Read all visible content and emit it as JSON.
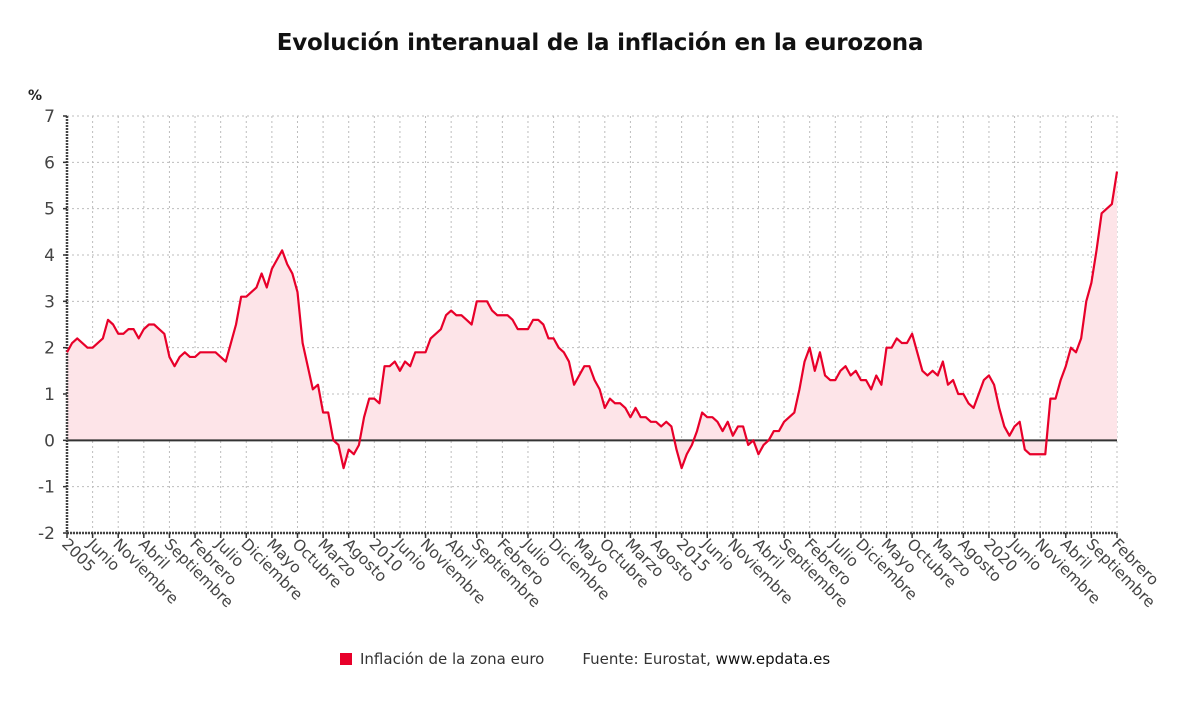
{
  "chart_data": {
    "type": "area",
    "title": "Evolución interanual de la inflación en la eurozona",
    "ylabel": "%",
    "xlabel": "",
    "ylim": [
      -2,
      7
    ],
    "yticks": [
      -2,
      -1,
      0,
      1,
      2,
      3,
      4,
      5,
      6,
      7
    ],
    "grid": true,
    "start": "2005-01",
    "end": "2022-02",
    "tick_every_months": 5,
    "xtick_labels": [
      "2005",
      "Junio",
      "Noviembre",
      "Abril",
      "Septiembre",
      "Febrero",
      "Julio",
      "Diciembre",
      "Mayo",
      "Octubre",
      "Marzo",
      "Agosto",
      "2010",
      "Junio",
      "Noviembre",
      "Abril",
      "Septiembre",
      "Febrero",
      "Julio",
      "Diciembre",
      "Mayo",
      "Octubre",
      "Marzo",
      "Agosto",
      "2015",
      "Junio",
      "Noviembre",
      "Abril",
      "Septiembre",
      "Febrero",
      "Julio",
      "Diciembre",
      "Mayo",
      "Octubre",
      "Marzo",
      "Agosto",
      "2020",
      "Junio",
      "Noviembre",
      "Abril",
      "Septiembre",
      "Febrero"
    ],
    "series": [
      {
        "name": "Inflación de la zona euro",
        "color": "#e8002a",
        "fill": "#fde4e8",
        "values": [
          1.9,
          2.1,
          2.2,
          2.1,
          2.0,
          2.0,
          2.1,
          2.2,
          2.6,
          2.5,
          2.3,
          2.3,
          2.4,
          2.4,
          2.2,
          2.4,
          2.5,
          2.5,
          2.4,
          2.3,
          1.8,
          1.6,
          1.8,
          1.9,
          1.8,
          1.8,
          1.9,
          1.9,
          1.9,
          1.9,
          1.8,
          1.7,
          2.1,
          2.5,
          3.1,
          3.1,
          3.2,
          3.3,
          3.6,
          3.3,
          3.7,
          3.9,
          4.1,
          3.8,
          3.6,
          3.2,
          2.1,
          1.6,
          1.1,
          1.2,
          0.6,
          0.6,
          0.0,
          -0.1,
          -0.6,
          -0.2,
          -0.3,
          -0.1,
          0.5,
          0.9,
          0.9,
          0.8,
          1.6,
          1.6,
          1.7,
          1.5,
          1.7,
          1.6,
          1.9,
          1.9,
          1.9,
          2.2,
          2.3,
          2.4,
          2.7,
          2.8,
          2.7,
          2.7,
          2.6,
          2.5,
          3.0,
          3.0,
          3.0,
          2.8,
          2.7,
          2.7,
          2.7,
          2.6,
          2.4,
          2.4,
          2.4,
          2.6,
          2.6,
          2.5,
          2.2,
          2.2,
          2.0,
          1.9,
          1.7,
          1.2,
          1.4,
          1.6,
          1.6,
          1.3,
          1.1,
          0.7,
          0.9,
          0.8,
          0.8,
          0.7,
          0.5,
          0.7,
          0.5,
          0.5,
          0.4,
          0.4,
          0.3,
          0.4,
          0.3,
          -0.2,
          -0.6,
          -0.3,
          -0.1,
          0.2,
          0.6,
          0.5,
          0.5,
          0.4,
          0.2,
          0.4,
          0.1,
          0.3,
          0.3,
          -0.1,
          0.0,
          -0.3,
          -0.1,
          0.0,
          0.2,
          0.2,
          0.4,
          0.5,
          0.6,
          1.1,
          1.7,
          2.0,
          1.5,
          1.9,
          1.4,
          1.3,
          1.3,
          1.5,
          1.6,
          1.4,
          1.5,
          1.3,
          1.3,
          1.1,
          1.4,
          1.2,
          2.0,
          2.0,
          2.2,
          2.1,
          2.1,
          2.3,
          1.9,
          1.5,
          1.4,
          1.5,
          1.4,
          1.7,
          1.2,
          1.3,
          1.0,
          1.0,
          0.8,
          0.7,
          1.0,
          1.3,
          1.4,
          1.2,
          0.7,
          0.3,
          0.1,
          0.3,
          0.4,
          -0.2,
          -0.3,
          -0.3,
          -0.3,
          -0.3,
          0.9,
          0.9,
          1.3,
          1.6,
          2.0,
          1.9,
          2.2,
          3.0,
          3.4,
          4.1,
          4.9,
          5.0,
          5.1,
          5.8
        ]
      }
    ]
  },
  "legend": {
    "entry": "Inflación de la zona euro",
    "source_prefix": "Fuente: Eurostat,",
    "source_site": "www.epdata.es"
  }
}
